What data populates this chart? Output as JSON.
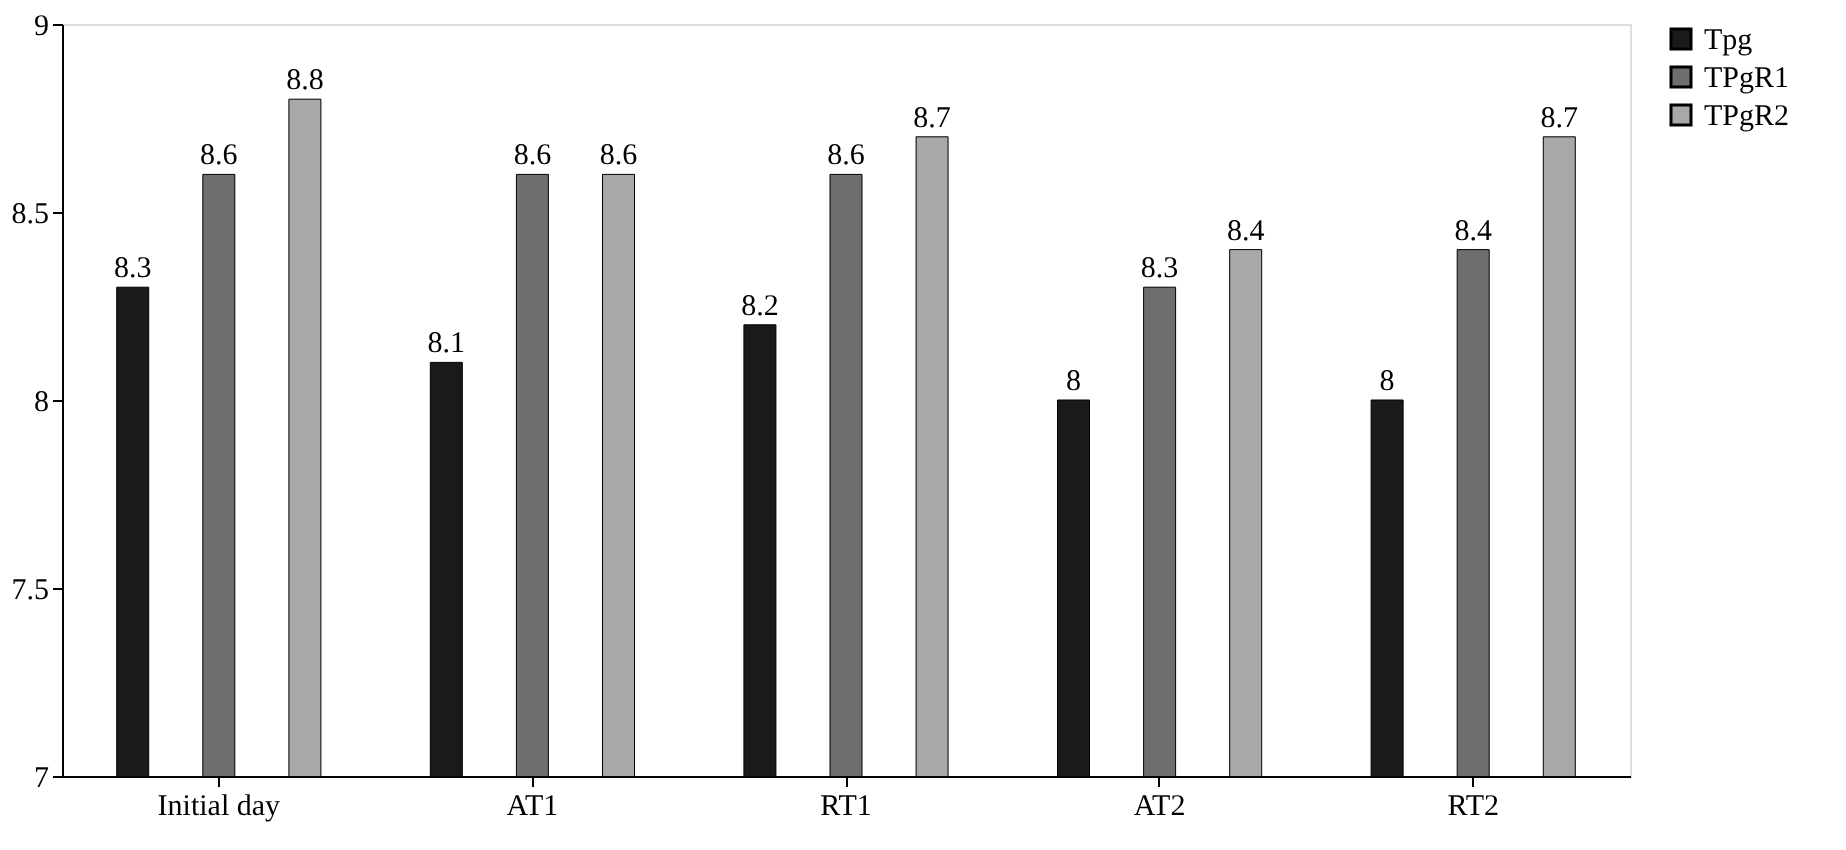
{
  "chart_data": {
    "type": "bar",
    "categories": [
      "Initial day",
      "AT1",
      "RT1",
      "AT2",
      "RT2"
    ],
    "series": [
      {
        "name": "Tpg",
        "color": "#1a1a1a",
        "values": [
          8.3,
          8.1,
          8.2,
          8,
          8
        ]
      },
      {
        "name": "TPgR1",
        "color": "#6e6e6e",
        "values": [
          8.6,
          8.6,
          8.6,
          8.3,
          8.4
        ]
      },
      {
        "name": "TPgR2",
        "color": "#a8a8a8",
        "values": [
          8.8,
          8.6,
          8.7,
          8.4,
          8.7
        ]
      }
    ],
    "ylim": [
      7,
      9
    ],
    "yticks": [
      7,
      7.5,
      8,
      8.5,
      9
    ],
    "grid": false,
    "legend": "right",
    "data_labels": true
  }
}
